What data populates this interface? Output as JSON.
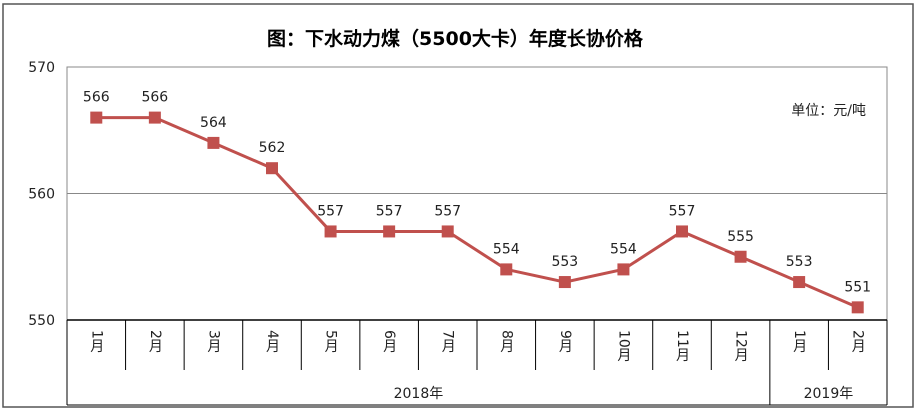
{
  "chart_data": {
    "type": "line",
    "title": "图：下水动力煤（5500大卡）年度长协价格",
    "unit_label": "单位：元/吨",
    "categories": [
      "1月",
      "2月",
      "3月",
      "4月",
      "5月",
      "6月",
      "7月",
      "8月",
      "9月",
      "10月",
      "11月",
      "12月",
      "1月",
      "2月"
    ],
    "groups": [
      {
        "label": "2018年",
        "count": 12
      },
      {
        "label": "2019年",
        "count": 2
      }
    ],
    "series": [
      {
        "values": [
          566,
          566,
          564,
          562,
          557,
          557,
          557,
          554,
          553,
          554,
          557,
          555,
          553,
          551
        ],
        "color": "#c0504d"
      }
    ],
    "y_ticks": [
      550,
      560,
      570
    ],
    "ylim": [
      550,
      570
    ],
    "grid": true,
    "legend": "none"
  }
}
